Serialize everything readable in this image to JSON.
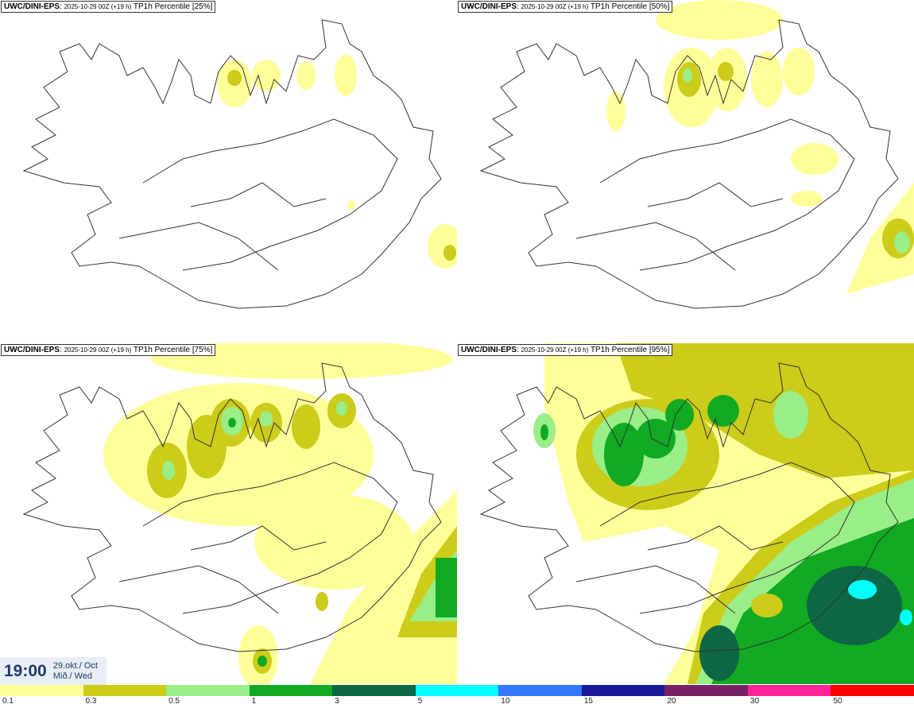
{
  "panels": [
    {
      "model": "UWC/DINI-EPS",
      "run": "2025-10-29 00Z (+19 h)",
      "product": "TP1h Percentile [25%]"
    },
    {
      "model": "UWC/DINI-EPS",
      "run": "2025-10-29 00Z (+19 h)",
      "product": "TP1h Percentile [50%]"
    },
    {
      "model": "UWC/DINI-EPS",
      "run": "2025-10-29 00Z (+19 h)",
      "product": "TP1h Percentile [75%]"
    },
    {
      "model": "UWC/DINI-EPS",
      "run": "2025-10-29 00Z (+19 h)",
      "product": "TP1h Percentile [95%]"
    }
  ],
  "time": {
    "hour": "19:00",
    "date_line": "29.okt./ Oct",
    "day_line": "Mið./ Wed"
  },
  "legend": {
    "labels": [
      "0.1",
      "0.3",
      "0.5",
      "1",
      "3",
      "5",
      "10",
      "15",
      "20",
      "30",
      "50"
    ],
    "colors": [
      "#ffff99",
      "#cccc1a",
      "#99ee88",
      "#11aa22",
      "#0d6644",
      "#00ffff",
      "#3377ff",
      "#1a1a99",
      "#772266",
      "#ff2299",
      "#ff0000"
    ]
  }
}
